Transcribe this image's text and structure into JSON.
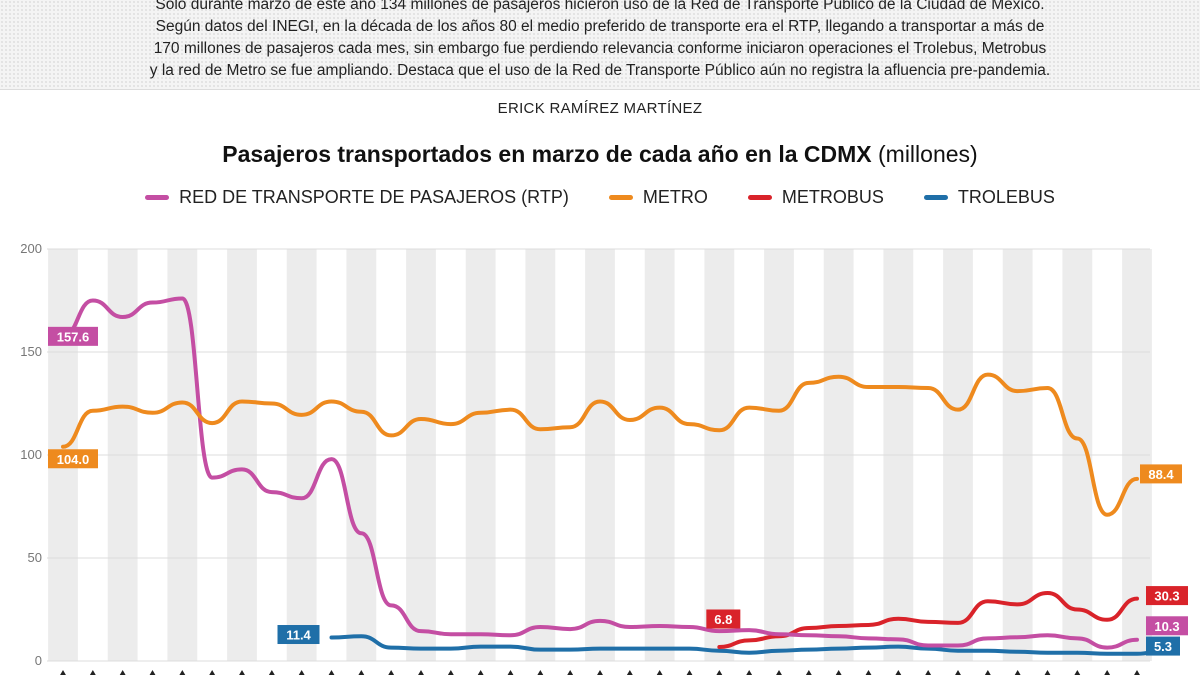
{
  "intro": {
    "lines": [
      "Sólo durante marzo de este año 134 millones de pasajeros hicieron uso de la Red de Transporte Público de la Ciudad de México.",
      "Según datos del INEGI, en la década de los años 80 el medio preferido de transporte era el RTP, llegando a transportar a más de",
      "170 millones de pasajeros cada mes, sin embargo fue perdiendo relevancia conforme iniciaron operaciones el Trolebus, Metrobus",
      "y la red de Metro se fue ampliando. Destaca que el uso de la Red de Transporte Público aún no registra la afluencia pre-pandemia."
    ]
  },
  "author": "ERICK RAMÍREZ MARTÍNEZ",
  "colors": {
    "rtp": "#c44ea3",
    "metro": "#ee8a1e",
    "metrobus": "#d9232a",
    "trolebus": "#1f6fa8",
    "band": "#ececec",
    "grid": "#dddddd"
  },
  "chart_data": {
    "type": "line",
    "title": "Pasajeros transportados en marzo de cada año en la CDMX",
    "title_unit": "(millones)",
    "xlabel": "",
    "ylabel": "",
    "ylim": [
      0,
      200
    ],
    "yticks": [
      0,
      50,
      100,
      150,
      200
    ],
    "n_categories": 37,
    "series": [
      {
        "key": "rtp",
        "name": "RED DE TRANSPORTE DE PASAJEROS (RTP)",
        "start_index": 0,
        "values": [
          157.6,
          175,
          167,
          174,
          176,
          89,
          93,
          82,
          79,
          98,
          62,
          27,
          14.5,
          13,
          13,
          12.5,
          16.5,
          15.5,
          19.5,
          16.5,
          17,
          16.5,
          14.5,
          15,
          13,
          12.5,
          12,
          11,
          10.5,
          7.5,
          7.5,
          11,
          11.5,
          12.5,
          11,
          6.5,
          10.3
        ],
        "start_label": "157.6",
        "end_label": "10.3"
      },
      {
        "key": "metro",
        "name": "METRO",
        "start_index": 0,
        "values": [
          104.0,
          121.5,
          123.5,
          120.5,
          125.5,
          115.5,
          126,
          125,
          119.5,
          126,
          121,
          109.5,
          117.5,
          115,
          120.5,
          122,
          112.5,
          113.5,
          126,
          117,
          123,
          115,
          112,
          123,
          121.5,
          135,
          138,
          133,
          133,
          132.5,
          122,
          139,
          131,
          132.5,
          108,
          71,
          88.4
        ],
        "start_label": "104.0",
        "end_label": "88.4"
      },
      {
        "key": "metrobus",
        "name": "METROBUS",
        "start_index": 22,
        "values": [
          6.8,
          10,
          12,
          16,
          17,
          17.5,
          20.5,
          19,
          18.5,
          29,
          27.5,
          33,
          25,
          20,
          30.3
        ],
        "start_label": "6.8",
        "end_label": "30.3"
      },
      {
        "key": "trolebus",
        "name": "TROLEBUS",
        "start_index": 9,
        "values": [
          11.4,
          12,
          6.5,
          6,
          6,
          7,
          7,
          5.5,
          5.5,
          6,
          6,
          6,
          6,
          5,
          4,
          5,
          5.5,
          6,
          6.5,
          7,
          6,
          5,
          5,
          4.5,
          4,
          4,
          3.5,
          3.5,
          5.3
        ],
        "start_label": "11.4",
        "end_label": "5.3"
      }
    ]
  }
}
